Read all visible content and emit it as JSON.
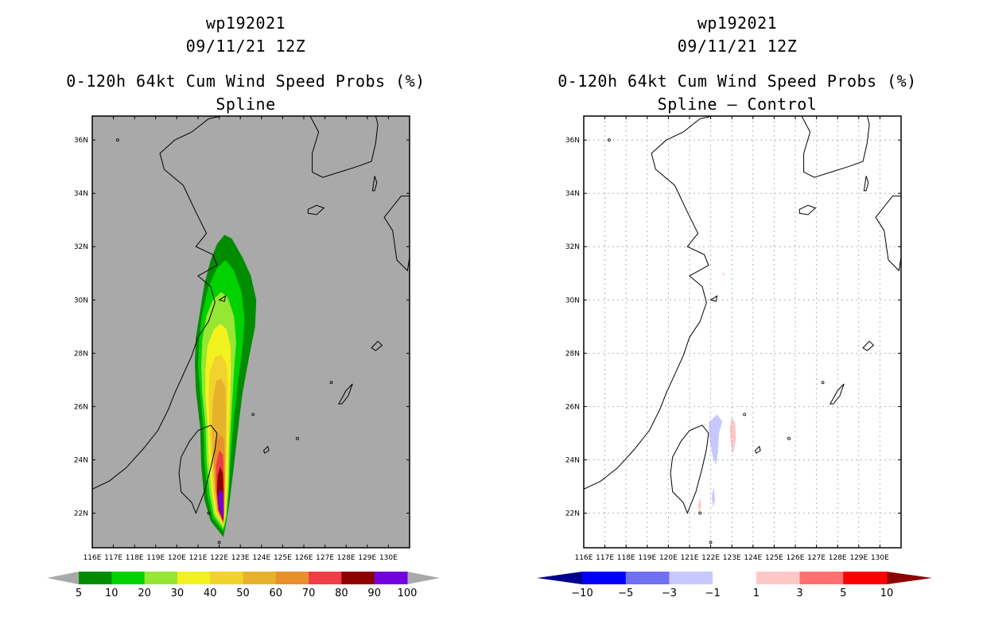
{
  "panels": [
    {
      "storm_id": "wp192021",
      "datetime": "09/11/21 12Z",
      "product": "0-120h 64kt Cum Wind Speed Probs (%)",
      "subtitle": "Spline",
      "background": "#a9a9a9"
    },
    {
      "storm_id": "wp192021",
      "datetime": "09/11/21 12Z",
      "product": "0-120h 64kt Cum Wind Speed Probs (%)",
      "subtitle": "Spline – Control",
      "background": "#ffffff"
    }
  ],
  "map": {
    "lon_range": [
      116,
      131
    ],
    "lat_range": [
      20.7,
      36.9
    ],
    "lon_ticks": [
      "116E",
      "117E",
      "118E",
      "119E",
      "120E",
      "121E",
      "122E",
      "123E",
      "124E",
      "125E",
      "126E",
      "127E",
      "128E",
      "129E",
      "130E"
    ],
    "lat_ticks": [
      "22N",
      "24N",
      "26N",
      "28N",
      "30N",
      "32N",
      "34N",
      "36N"
    ]
  },
  "chart_data": [
    {
      "type": "map-contour",
      "title": "0-120h 64kt Cum Wind Speed Probs (%)",
      "subtitle": "Spline",
      "colorbar": {
        "labels": [
          "5",
          "10",
          "20",
          "30",
          "40",
          "50",
          "60",
          "70",
          "80",
          "90",
          "100"
        ],
        "colors": [
          "#008c00",
          "#00d200",
          "#96e633",
          "#f2f21e",
          "#f2d22d",
          "#e6b22c",
          "#e6912c",
          "#f03c46",
          "#8c0000",
          "#7300dc"
        ],
        "end_left": "#a9a9a9",
        "end_right": "#a9a9a9"
      },
      "contours": [
        {
          "level": 5,
          "color": "#008c00",
          "outline": [
            [
              122.2,
              21.1
            ],
            [
              121.6,
              21.7
            ],
            [
              121.3,
              22.5
            ],
            [
              121.15,
              23.8
            ],
            [
              121.1,
              25.2
            ],
            [
              120.9,
              26.6
            ],
            [
              120.85,
              27.6
            ],
            [
              120.9,
              28.6
            ],
            [
              121.1,
              29.6
            ],
            [
              121.3,
              30.6
            ],
            [
              121.6,
              31.5
            ],
            [
              121.9,
              32.1
            ],
            [
              122.25,
              32.45
            ],
            [
              122.6,
              32.3
            ],
            [
              123.1,
              31.6
            ],
            [
              123.5,
              30.9
            ],
            [
              123.75,
              30.0
            ],
            [
              123.7,
              29.0
            ],
            [
              123.4,
              27.8
            ],
            [
              123.1,
              26.5
            ],
            [
              122.9,
              25.2
            ],
            [
              122.7,
              23.8
            ],
            [
              122.5,
              22.5
            ],
            [
              122.35,
              21.7
            ]
          ]
        },
        {
          "level": 10,
          "color": "#00d200",
          "outline": [
            [
              122.2,
              21.3
            ],
            [
              121.7,
              21.8
            ],
            [
              121.45,
              22.6
            ],
            [
              121.3,
              23.9
            ],
            [
              121.25,
              25.2
            ],
            [
              121.1,
              26.5
            ],
            [
              121.0,
              27.5
            ],
            [
              121.05,
              28.5
            ],
            [
              121.2,
              29.5
            ],
            [
              121.5,
              30.5
            ],
            [
              121.9,
              31.2
            ],
            [
              122.3,
              31.5
            ],
            [
              122.7,
              31.1
            ],
            [
              123.05,
              30.3
            ],
            [
              123.2,
              29.3
            ],
            [
              123.1,
              28.2
            ],
            [
              122.9,
              27.0
            ],
            [
              122.7,
              25.6
            ],
            [
              122.55,
              24.1
            ],
            [
              122.45,
              22.7
            ],
            [
              122.35,
              21.8
            ]
          ]
        },
        {
          "level": 20,
          "color": "#96e633",
          "outline": [
            [
              122.2,
              21.4
            ],
            [
              121.75,
              21.9
            ],
            [
              121.55,
              22.7
            ],
            [
              121.4,
              24.0
            ],
            [
              121.35,
              25.3
            ],
            [
              121.2,
              26.5
            ],
            [
              121.15,
              27.5
            ],
            [
              121.2,
              28.5
            ],
            [
              121.4,
              29.4
            ],
            [
              121.7,
              30.0
            ],
            [
              122.1,
              30.3
            ],
            [
              122.4,
              30.1
            ],
            [
              122.7,
              29.4
            ],
            [
              122.8,
              28.4
            ],
            [
              122.7,
              27.3
            ],
            [
              122.6,
              26.0
            ],
            [
              122.5,
              24.5
            ],
            [
              122.45,
              23.0
            ],
            [
              122.35,
              21.9
            ]
          ]
        },
        {
          "level": 30,
          "color": "#f2f21e",
          "outline": [
            [
              122.2,
              21.5
            ],
            [
              121.8,
              22.0
            ],
            [
              121.65,
              22.8
            ],
            [
              121.5,
              24.0
            ],
            [
              121.45,
              25.3
            ],
            [
              121.35,
              26.4
            ],
            [
              121.35,
              27.4
            ],
            [
              121.45,
              28.3
            ],
            [
              121.75,
              28.9
            ],
            [
              122.05,
              29.1
            ],
            [
              122.35,
              28.9
            ],
            [
              122.55,
              28.2
            ],
            [
              122.55,
              27.2
            ],
            [
              122.5,
              26.0
            ],
            [
              122.45,
              24.6
            ],
            [
              122.4,
              23.1
            ],
            [
              122.3,
              22.0
            ]
          ]
        },
        {
          "level": 40,
          "color": "#f2d22d",
          "outline": [
            [
              122.2,
              21.55
            ],
            [
              121.85,
              22.05
            ],
            [
              121.72,
              22.8
            ],
            [
              121.6,
              24.0
            ],
            [
              121.55,
              25.2
            ],
            [
              121.5,
              26.3
            ],
            [
              121.55,
              27.3
            ],
            [
              121.8,
              27.85
            ],
            [
              122.1,
              27.95
            ],
            [
              122.35,
              27.6
            ],
            [
              122.4,
              26.8
            ],
            [
              122.38,
              25.6
            ],
            [
              122.35,
              24.3
            ],
            [
              122.3,
              22.9
            ],
            [
              122.27,
              22.0
            ]
          ]
        },
        {
          "level": 50,
          "color": "#e6b22c",
          "outline": [
            [
              122.2,
              21.6
            ],
            [
              121.9,
              22.1
            ],
            [
              121.78,
              22.85
            ],
            [
              121.7,
              24.0
            ],
            [
              121.65,
              25.1
            ],
            [
              121.7,
              26.2
            ],
            [
              121.85,
              26.95
            ],
            [
              122.1,
              27.05
            ],
            [
              122.3,
              26.7
            ],
            [
              122.32,
              25.6
            ],
            [
              122.3,
              24.3
            ],
            [
              122.27,
              22.9
            ],
            [
              122.24,
              22.0
            ]
          ]
        },
        {
          "level": 60,
          "color": "#e6912c",
          "outline": [
            [
              122.2,
              21.6
            ],
            [
              121.93,
              22.1
            ],
            [
              121.82,
              22.9
            ],
            [
              121.75,
              23.9
            ],
            [
              121.8,
              24.6
            ],
            [
              122.0,
              24.95
            ],
            [
              122.22,
              24.8
            ],
            [
              122.27,
              24.0
            ],
            [
              122.26,
              22.9
            ],
            [
              122.23,
              22.0
            ]
          ]
        },
        {
          "level": 70,
          "color": "#f03c46",
          "outline": [
            [
              122.2,
              21.65
            ],
            [
              121.95,
              22.1
            ],
            [
              121.85,
              22.9
            ],
            [
              121.85,
              23.8
            ],
            [
              122.0,
              24.35
            ],
            [
              122.18,
              24.2
            ],
            [
              122.23,
              23.3
            ],
            [
              122.22,
              22.4
            ],
            [
              122.22,
              21.9
            ]
          ]
        },
        {
          "level": 80,
          "color": "#8c0000",
          "outline": [
            [
              122.2,
              21.7
            ],
            [
              121.97,
              22.15
            ],
            [
              121.9,
              22.8
            ],
            [
              121.93,
              23.4
            ],
            [
              122.05,
              23.75
            ],
            [
              122.17,
              23.5
            ],
            [
              122.2,
              22.8
            ],
            [
              122.21,
              22.1
            ]
          ]
        },
        {
          "level": 90,
          "color": "#7300dc",
          "outline": [
            [
              122.2,
              21.75
            ],
            [
              121.98,
              22.2
            ],
            [
              121.95,
              22.65
            ],
            [
              122.05,
              22.9
            ],
            [
              122.18,
              22.75
            ],
            [
              122.2,
              22.2
            ]
          ]
        }
      ]
    },
    {
      "type": "map-contour",
      "title": "0-120h 64kt Cum Wind Speed Probs (%)",
      "subtitle": "Spline – Control",
      "colorbar": {
        "labels": [
          "−10",
          "−5",
          "−3",
          "−1",
          "1",
          "3",
          "5",
          "10"
        ],
        "colors": [
          "#0000ff",
          "#7070f0",
          "#c8c8ff",
          "#ffffff",
          "#ffc8c8",
          "#ff7070",
          "#ff0000"
        ],
        "end_left": "#00008c",
        "end_right": "#8c0000"
      },
      "contours": [
        {
          "level": -3,
          "color": "#c8c8ff",
          "outline": [
            [
              121.9,
              25.4
            ],
            [
              122.3,
              25.7
            ],
            [
              122.55,
              25.45
            ],
            [
              122.4,
              25.0
            ],
            [
              122.35,
              24.3
            ],
            [
              122.25,
              23.8
            ],
            [
              122.1,
              24.1
            ],
            [
              121.95,
              24.7
            ]
          ]
        },
        {
          "level": -3,
          "color": "#c8c8ff",
          "outline": [
            [
              122.05,
              22.6
            ],
            [
              122.15,
              23.0
            ],
            [
              122.2,
              22.5
            ],
            [
              122.12,
              22.2
            ]
          ]
        },
        {
          "level": 3,
          "color": "#ffc8c8",
          "outline": [
            [
              123.0,
              25.6
            ],
            [
              123.15,
              25.4
            ],
            [
              123.2,
              24.8
            ],
            [
              123.05,
              24.2
            ],
            [
              122.95,
              24.6
            ],
            [
              122.9,
              25.2
            ]
          ]
        },
        {
          "level": 3,
          "color": "#ffc8c8",
          "outline": [
            [
              121.4,
              22.3
            ],
            [
              121.5,
              22.6
            ],
            [
              121.55,
              22.2
            ],
            [
              121.47,
              22.0
            ]
          ]
        },
        {
          "level": 3,
          "color": "#ffc8c8",
          "outline": [
            [
              122.55,
              30.95
            ],
            [
              122.6,
              31.05
            ],
            [
              122.65,
              30.9
            ]
          ]
        }
      ]
    }
  ]
}
